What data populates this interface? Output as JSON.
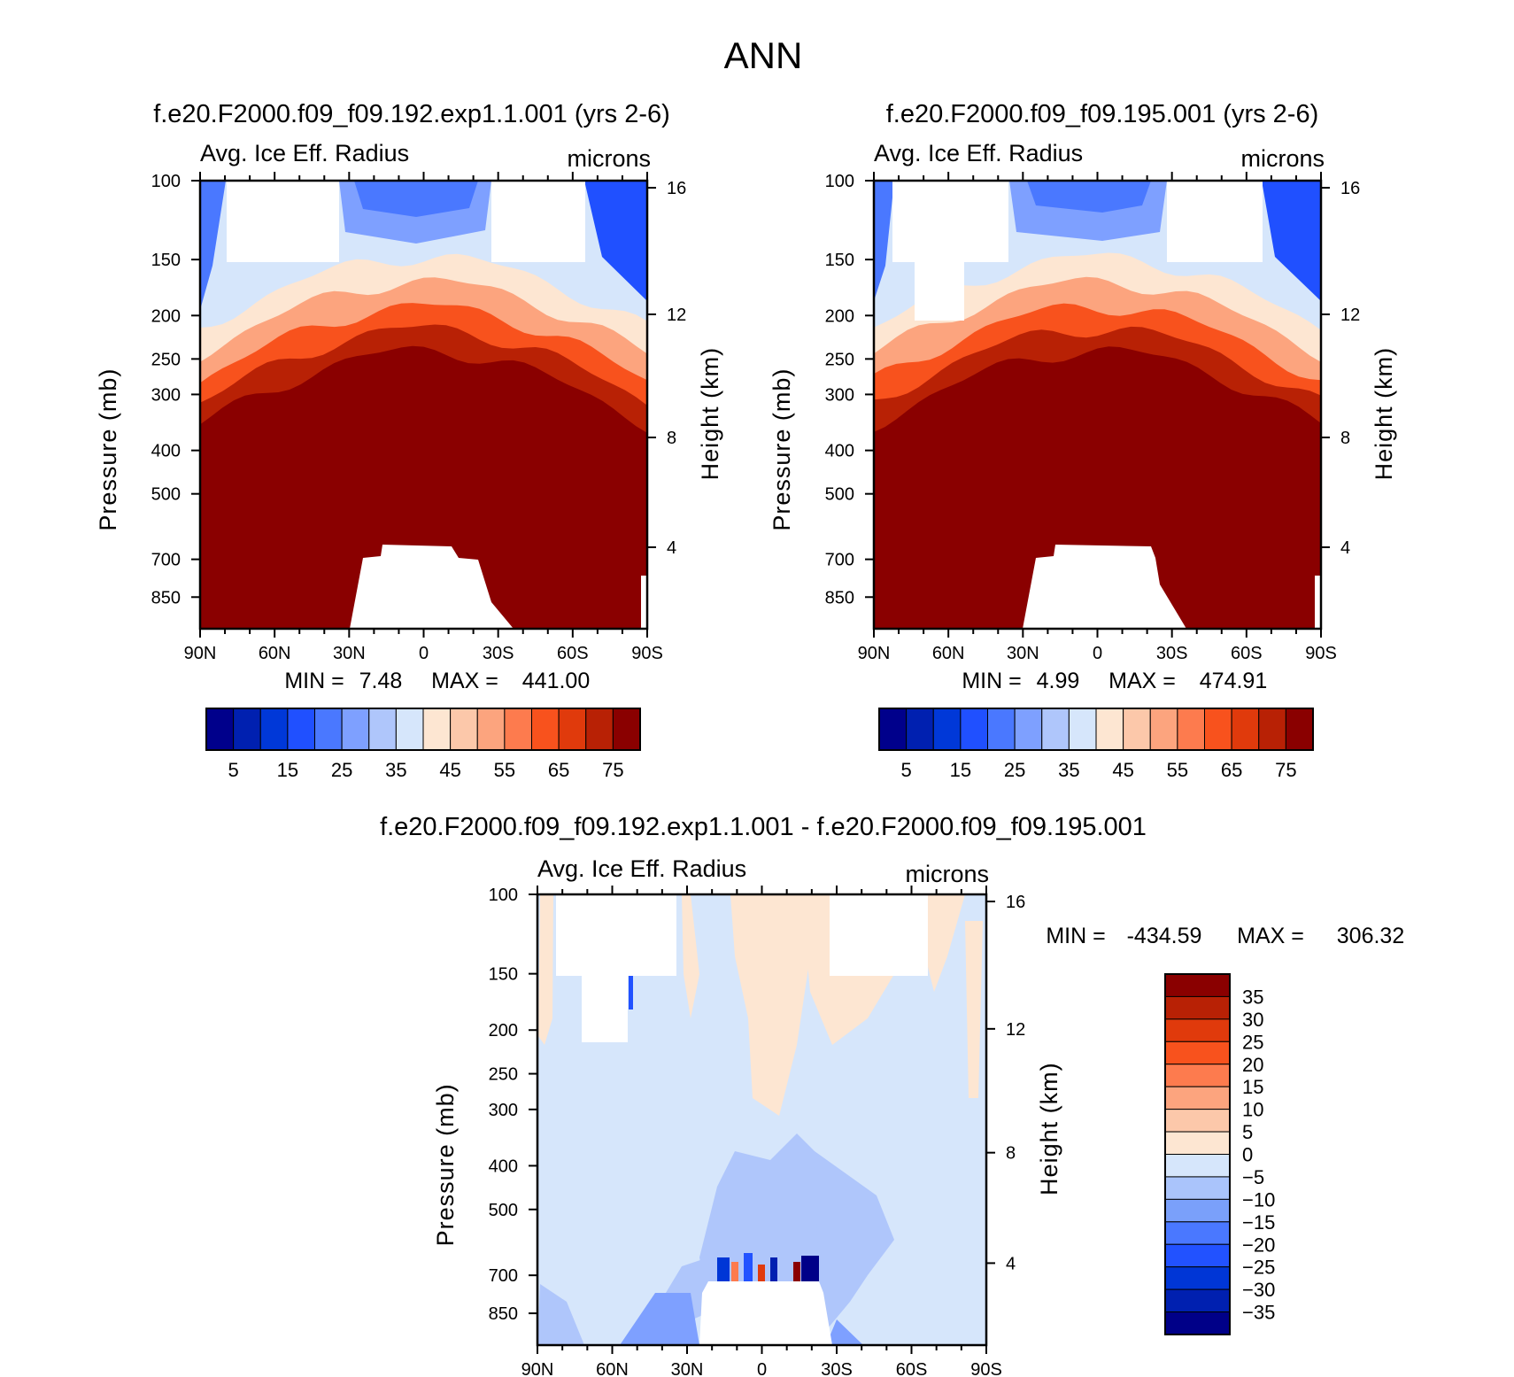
{
  "page_title": "ANN",
  "colors": {
    "blue_scale": [
      "#00008b",
      "#0020b0",
      "#0038d8",
      "#2050ff",
      "#4a78ff",
      "#7ea0ff",
      "#afc6fb",
      "#d6e6fb"
    ],
    "red_scale": [
      "#fde6d2",
      "#fcc8aa",
      "#fca47e",
      "#fd7b4e",
      "#f8521d",
      "#e03a0c",
      "#b82105",
      "#8a0000"
    ],
    "bottom_diff_scale": [
      "#000088",
      "#0020b0",
      "#0036d6",
      "#2252ff",
      "#4a78ff",
      "#7aa0fa",
      "#aac4fb",
      "#d6e6fb",
      "#fde6d2",
      "#fcc8aa",
      "#fca47e",
      "#fd7b4e",
      "#f8521d",
      "#e03a0c",
      "#b82105",
      "#8a0000"
    ]
  },
  "chart_data": [
    {
      "type": "heatmap",
      "title": "f.e20.F2000.f09_f09.192.exp1.1.001 (yrs 2-6)",
      "variable": "Avg. Ice Eff. Radius",
      "units": "microns",
      "ylabel": "Pressure (mb)",
      "ylabel_right": "Height (km)",
      "x_ticks": [
        "90N",
        "60N",
        "30N",
        "0",
        "30S",
        "60S",
        "90S"
      ],
      "y_ticks": [
        100,
        150,
        200,
        250,
        300,
        400,
        500,
        700,
        850
      ],
      "y_ticks_right": [
        16,
        12,
        8,
        4
      ],
      "ylim": [
        100,
        1000
      ],
      "min_label": "MIN =",
      "min_value": "7.48",
      "max_label": "MAX =",
      "max_value": "441.00",
      "colorbar_labels": [
        "5",
        "15",
        "25",
        "35",
        "45",
        "55",
        "65",
        "75"
      ],
      "fill_fraction_above": 0.55
    },
    {
      "type": "heatmap",
      "title": "f.e20.F2000.f09_f09.195.001 (yrs 2-6)",
      "variable": "Avg. Ice Eff. Radius",
      "units": "microns",
      "ylabel": "Pressure (mb)",
      "ylabel_right": "Height (km)",
      "x_ticks": [
        "90N",
        "60N",
        "30N",
        "0",
        "30S",
        "60S",
        "90S"
      ],
      "y_ticks": [
        100,
        150,
        200,
        250,
        300,
        400,
        500,
        700,
        850
      ],
      "y_ticks_right": [
        16,
        12,
        8,
        4
      ],
      "ylim": [
        100,
        1000
      ],
      "min_label": "MIN =",
      "min_value": "4.99",
      "max_label": "MAX =",
      "max_value": "474.91",
      "colorbar_labels": [
        "5",
        "15",
        "25",
        "35",
        "45",
        "55",
        "65",
        "75"
      ],
      "fill_fraction_above": 0.55
    },
    {
      "type": "heatmap",
      "title": "f.e20.F2000.f09_f09.192.exp1.1.001 - f.e20.F2000.f09_f09.195.001",
      "variable": "Avg. Ice Eff. Radius",
      "units": "microns",
      "ylabel": "Pressure (mb)",
      "ylabel_right": "Height (km)",
      "x_ticks": [
        "90N",
        "60N",
        "30N",
        "0",
        "30S",
        "60S",
        "90S"
      ],
      "y_ticks": [
        100,
        150,
        200,
        250,
        300,
        400,
        500,
        700,
        850
      ],
      "y_ticks_right": [
        16,
        12,
        8,
        4
      ],
      "ylim": [
        100,
        1000
      ],
      "min_label": "MIN =",
      "min_value": "-434.59",
      "max_label": "MAX =",
      "max_value": "306.32",
      "colorbar_labels": [
        "35",
        "30",
        "25",
        "20",
        "15",
        "10",
        "5",
        "0",
        "-5",
        "-10",
        "-15",
        "-20",
        "-25",
        "-30",
        "-35"
      ]
    }
  ]
}
